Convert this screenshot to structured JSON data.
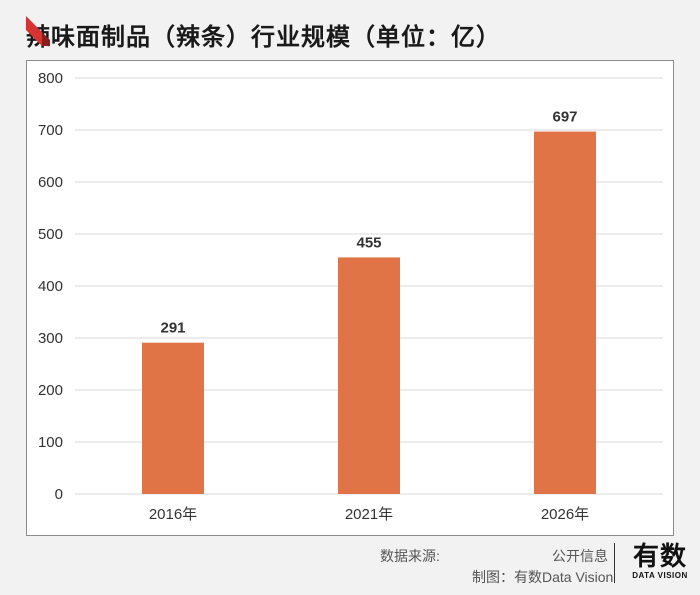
{
  "title": "辣味面制品（辣条）行业规模（单位：亿）",
  "colors": {
    "bar": "#e17447",
    "grid": "#d9d9d9",
    "accent": "#d63333"
  },
  "chart_data": {
    "type": "bar",
    "title": "辣味面制品（辣条）行业规模（单位：亿）",
    "categories": [
      "2016年",
      "2021年",
      "2026年"
    ],
    "values": [
      291,
      455,
      697
    ],
    "ylim": [
      0,
      800
    ],
    "yticks": [
      0,
      100,
      200,
      300,
      400,
      500,
      600,
      700,
      800
    ],
    "xlabel": "",
    "ylabel": "",
    "grid": true
  },
  "footer": {
    "source_label": "数据来源:",
    "source_value": "公开信息",
    "maker": "制图：有数Data Vision"
  },
  "logo": {
    "main": "有数",
    "sub": "DATA VISION"
  }
}
